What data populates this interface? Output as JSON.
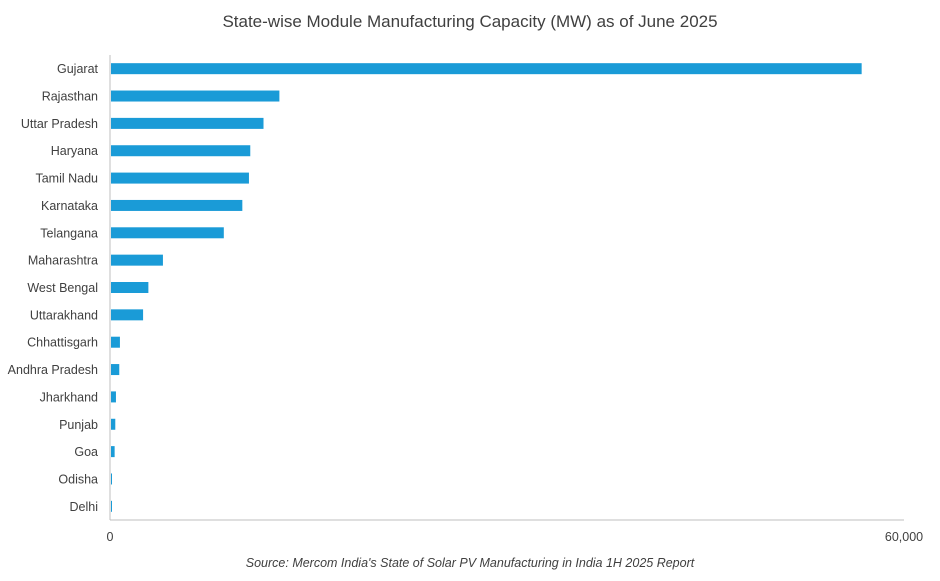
{
  "chart_data": {
    "type": "bar",
    "orientation": "horizontal",
    "title": "State-wise Module Manufacturing Capacity (MW) as of June 2025",
    "source": "Source: Mercom India's State of Solar PV Manufacturing in India 1H 2025 Report",
    "categories": [
      "Gujarat",
      "Rajasthan",
      "Uttar Pradesh",
      "Haryana",
      "Tamil Nadu",
      "Karnataka",
      "Telangana",
      "Maharashtra",
      "West Bengal",
      "Uttarakhand",
      "Chhattisgarh",
      "Andhra Pradesh",
      "Jharkhand",
      "Punjab",
      "Goa",
      "Odisha",
      "Delhi"
    ],
    "values": [
      56800,
      12800,
      11600,
      10600,
      10500,
      10000,
      8600,
      4000,
      2900,
      2500,
      750,
      700,
      450,
      400,
      350,
      150,
      150
    ],
    "xlim": [
      0,
      60000
    ],
    "x_ticks": [
      "0",
      "60,000"
    ],
    "bar_color": "#1A9BD7",
    "axis_color": "#BFBFBF",
    "grid": false,
    "legend": "none"
  }
}
